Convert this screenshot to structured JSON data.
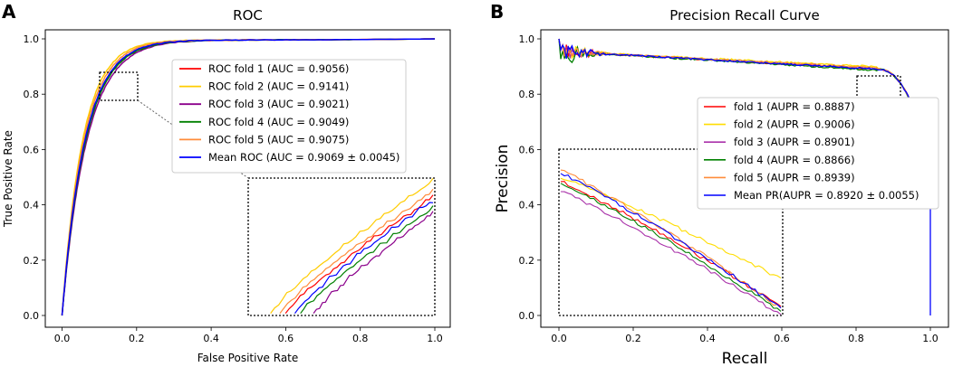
{
  "chart_data": [
    {
      "panel": "A",
      "type": "line",
      "title": "ROC",
      "xlabel": "False Positive Rate",
      "ylabel": "True Positive Rate",
      "xlim": [
        0,
        1
      ],
      "ylim": [
        0,
        1
      ],
      "xticks": [
        "0.0",
        "0.2",
        "0.4",
        "0.6",
        "0.8",
        "1.0"
      ],
      "yticks": [
        "0.0",
        "0.2",
        "0.4",
        "0.6",
        "0.8",
        "1.0"
      ],
      "legend_position": "center-right",
      "zoom_region": {
        "x": [
          0.1,
          0.2
        ],
        "y": [
          0.78,
          0.88
        ]
      },
      "series": [
        {
          "name": "ROC fold 1 (AUC = 0.9056)",
          "color": "#ff0000",
          "auc": 0.9056
        },
        {
          "name": "ROC fold 2 (AUC = 0.9141)",
          "color": "#ffcc00",
          "auc": 0.9141
        },
        {
          "name": "ROC fold 3 (AUC = 0.9021)",
          "color": "#8b008b",
          "auc": 0.9021
        },
        {
          "name": "ROC fold 4 (AUC = 0.9049)",
          "color": "#008000",
          "auc": 0.9049
        },
        {
          "name": "ROC fold 5 (AUC = 0.9075)",
          "color": "#ff8c3a",
          "auc": 0.9075
        },
        {
          "name": "Mean ROC (AUC = 0.9069 ± 0.0045)",
          "color": "#0000ff",
          "auc": 0.9069
        }
      ]
    },
    {
      "panel": "B",
      "type": "line",
      "title": "Precision Recall Curve",
      "xlabel": "Recall",
      "ylabel": "Precision",
      "xlim": [
        0,
        1
      ],
      "ylim": [
        0,
        1
      ],
      "xticks": [
        "0.0",
        "0.2",
        "0.4",
        "0.6",
        "0.8",
        "1.0"
      ],
      "yticks": [
        "0.0",
        "0.2",
        "0.4",
        "0.6",
        "0.8",
        "1.0"
      ],
      "legend_position": "center-right",
      "zoom_region": {
        "x": [
          0.8,
          0.92
        ],
        "y": [
          0.75,
          0.87
        ]
      },
      "series": [
        {
          "name": "fold 1 (AUPR = 0.8887)",
          "color": "#ff0000",
          "aupr": 0.8887
        },
        {
          "name": "fold 2 (AUPR = 0.9006)",
          "color": "#ffdd00",
          "aupr": 0.9006
        },
        {
          "name": "fold 3 (AUPR = 0.8901)",
          "color": "#aa33aa",
          "aupr": 0.8901
        },
        {
          "name": "fold 4 (AUPR = 0.8866)",
          "color": "#008000",
          "aupr": 0.8866
        },
        {
          "name": "fold 5 (AUPR = 0.8939)",
          "color": "#ff8c3a",
          "aupr": 0.8939
        },
        {
          "name": "Mean PR(AUPR = 0.8920 ± 0.0055)",
          "color": "#0000ff",
          "aupr": 0.892
        }
      ]
    }
  ]
}
